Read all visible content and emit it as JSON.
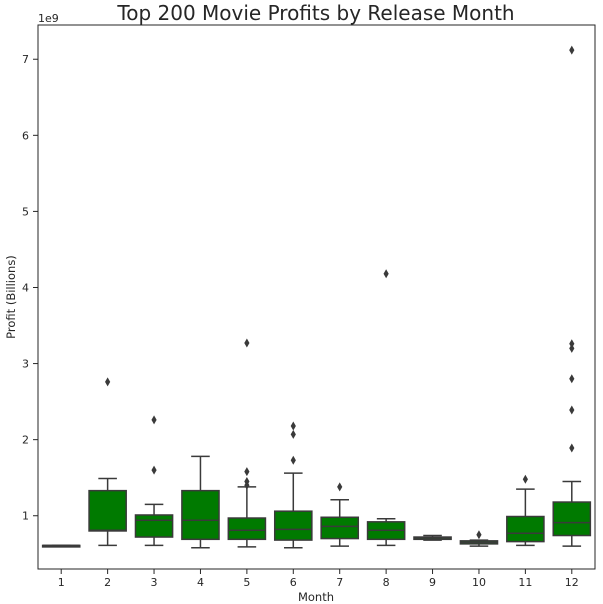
{
  "chart_data": {
    "type": "box",
    "title": "Top 200 Movie Profits by Release Month",
    "xlabel": "Month",
    "ylabel": "Profit (Billions)",
    "y_scale_label": "1e9",
    "ylim": [
      0.3,
      7.45
    ],
    "yticks": [
      1,
      2,
      3,
      4,
      5,
      6,
      7
    ],
    "categories": [
      "1",
      "2",
      "3",
      "4",
      "5",
      "6",
      "7",
      "8",
      "9",
      "10",
      "11",
      "12"
    ],
    "box_color": "#007a00",
    "boxes": [
      {
        "month": "1",
        "whislo": 0.61,
        "q1": 0.61,
        "med": 0.61,
        "q3": 0.61,
        "whishi": 0.61,
        "fliers": []
      },
      {
        "month": "2",
        "whislo": 0.61,
        "q1": 0.8,
        "med": 0.81,
        "q3": 1.33,
        "whishi": 1.49,
        "fliers": [
          2.76
        ]
      },
      {
        "month": "3",
        "whislo": 0.61,
        "q1": 0.72,
        "med": 0.94,
        "q3": 1.01,
        "whishi": 1.15,
        "fliers": [
          1.6,
          2.26
        ]
      },
      {
        "month": "4",
        "whislo": 0.58,
        "q1": 0.69,
        "med": 0.94,
        "q3": 1.33,
        "whishi": 1.78,
        "fliers": []
      },
      {
        "month": "5",
        "whislo": 0.59,
        "q1": 0.69,
        "med": 0.81,
        "q3": 0.97,
        "whishi": 1.38,
        "fliers": [
          1.4,
          1.45,
          1.58,
          3.27
        ]
      },
      {
        "month": "6",
        "whislo": 0.58,
        "q1": 0.68,
        "med": 0.82,
        "q3": 1.06,
        "whishi": 1.56,
        "fliers": [
          1.73,
          2.07,
          2.18
        ]
      },
      {
        "month": "7",
        "whislo": 0.6,
        "q1": 0.7,
        "med": 0.86,
        "q3": 0.98,
        "whishi": 1.21,
        "fliers": [
          1.38
        ]
      },
      {
        "month": "8",
        "whislo": 0.61,
        "q1": 0.69,
        "med": 0.81,
        "q3": 0.92,
        "whishi": 0.96,
        "fliers": [
          4.18
        ]
      },
      {
        "month": "9",
        "whislo": 0.68,
        "q1": 0.69,
        "med": 0.71,
        "q3": 0.72,
        "whishi": 0.74,
        "fliers": []
      },
      {
        "month": "10",
        "whislo": 0.6,
        "q1": 0.63,
        "med": 0.65,
        "q3": 0.67,
        "whishi": 0.68,
        "fliers": [
          0.75
        ]
      },
      {
        "month": "11",
        "whislo": 0.61,
        "q1": 0.66,
        "med": 0.77,
        "q3": 0.99,
        "whishi": 1.35,
        "fliers": [
          1.48
        ]
      },
      {
        "month": "12",
        "whislo": 0.6,
        "q1": 0.74,
        "med": 0.91,
        "q3": 1.18,
        "whishi": 1.45,
        "fliers": [
          1.89,
          2.39,
          2.8,
          3.2,
          3.26,
          7.12
        ]
      }
    ]
  }
}
